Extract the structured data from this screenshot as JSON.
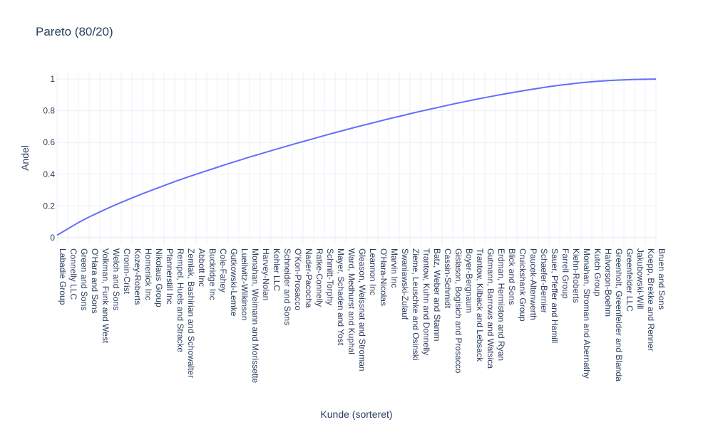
{
  "chart_data": {
    "type": "line",
    "title": "Pareto (80/20)",
    "xlabel": "Kunde (sorteret)",
    "ylabel": "Andel",
    "ylim": [
      -0.05,
      1.05
    ],
    "yticks": [
      0,
      0.2,
      0.4,
      0.6,
      0.8,
      1
    ],
    "ytick_labels": [
      "0",
      "0.2",
      "0.4",
      "0.6",
      "0.8",
      "1"
    ],
    "grid": true,
    "line_color": "#636efa",
    "x": [
      "Labadie Group",
      "Connelly LLC",
      "Green and Sons",
      "O'Hara and Sons",
      "Volkman, Funk and West",
      "Welch and Sons",
      "Cronin-Crist",
      "Kozey-Roberts",
      "Homenick Inc",
      "Nikolaus Group",
      "Pfannerstill Inc",
      "Rempel, Huels and Stracke",
      "Zemlak, Bashirian and Schowalter",
      "Abbott Inc",
      "Buckridge Inc",
      "Cole-Fahey",
      "Gutkowski-Lemke",
      "Lueilwitz-Wilkinson",
      "Monahan, Weimann and Morissette",
      "Harvey-Nolan",
      "Kohler LLC",
      "Schneider and Sons",
      "O'Kon-Prosacco",
      "Nader-Pacocha",
      "Ratke-Connelly",
      "Schmitt-Torphy",
      "Mayer, Schaden and Yost",
      "Ward, Medhurst and Kuphal",
      "Gleason, Weissnat and Stroman",
      "Leannon Inc",
      "O'Hara-Nicolas",
      "Marvin Inc",
      "Swaniawski-Zulauf",
      "Zieme, Leuschke and Osinski",
      "Trantow, Kuhn and Donnelly",
      "Batz, Weber and Stamm",
      "Cassin-Schmidt",
      "Gislason, Bogisich and Prosacco",
      "Boyer-Bergnaum",
      "Trantow, Kilback and Lebsack",
      "Gutmann, Barrows and Watsica",
      "Erdman, Hermiston and Ryan",
      "Blick and Sons",
      "Cruickshank Group",
      "Paucek-Altenwerth",
      "Schaefer-Bernier",
      "Sauer, Pfeffer and Hamill",
      "Farrell Group",
      "Kiehn-Roberts",
      "Monahan, Stroman and Abernathy",
      "Kutch Group",
      "Halvorson-Boehm",
      "Greenholt, Greenfelder and Blanda",
      "Greenfelder LLC",
      "Jakubowski-Will",
      "Koepp, Brekke and Renner",
      "Bruen and Sons"
    ],
    "y": [
      0.015,
      0.055,
      0.095,
      0.13,
      0.162,
      0.193,
      0.222,
      0.25,
      0.277,
      0.303,
      0.328,
      0.353,
      0.377,
      0.4,
      0.422,
      0.444,
      0.466,
      0.487,
      0.508,
      0.528,
      0.548,
      0.568,
      0.587,
      0.606,
      0.625,
      0.644,
      0.662,
      0.68,
      0.698,
      0.715,
      0.732,
      0.749,
      0.765,
      0.781,
      0.797,
      0.812,
      0.827,
      0.842,
      0.856,
      0.87,
      0.883,
      0.896,
      0.908,
      0.92,
      0.931,
      0.942,
      0.952,
      0.961,
      0.969,
      0.977,
      0.983,
      0.988,
      0.992,
      0.995,
      0.998,
      0.999,
      1.0
    ]
  }
}
